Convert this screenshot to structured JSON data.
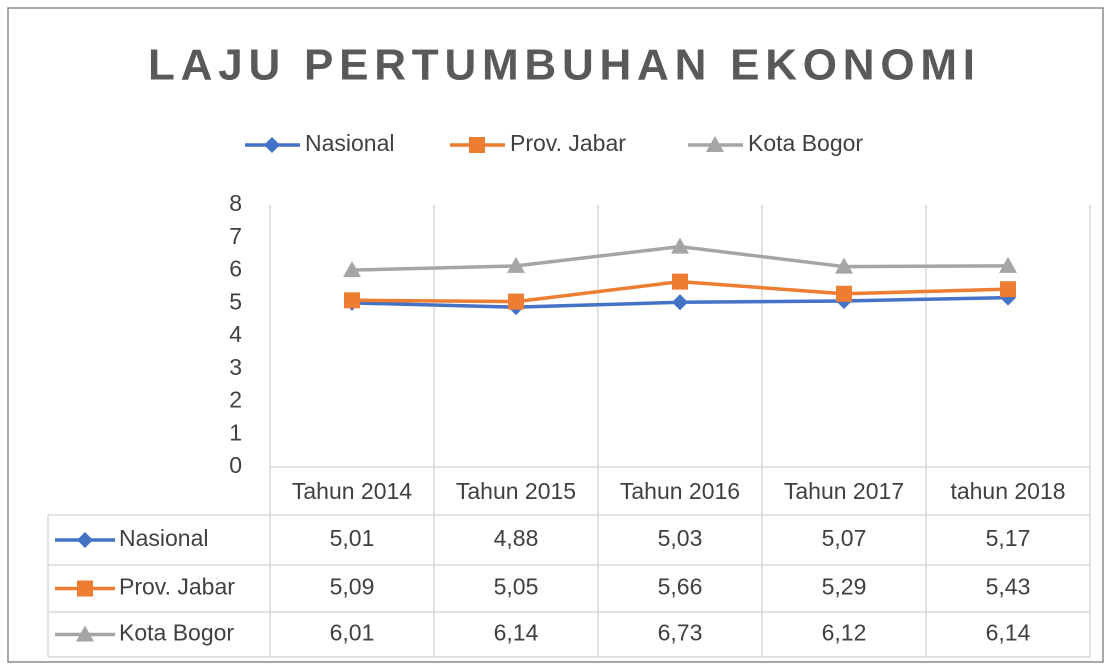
{
  "chart_data": {
    "type": "line",
    "title": "LAJU PERTUMBUHAN EKONOMI",
    "categories": [
      "Tahun 2014",
      "Tahun 2015",
      "Tahun 2016",
      "Tahun 2017",
      "tahun 2018"
    ],
    "series": [
      {
        "name": "Nasional",
        "color": "#4472c4",
        "marker": "diamond",
        "values": [
          5.01,
          4.88,
          5.03,
          5.07,
          5.17
        ],
        "value_labels": [
          "5,01",
          "4,88",
          "5,03",
          "5,07",
          "5,17"
        ]
      },
      {
        "name": "Prov. Jabar",
        "color": "#ed7d31",
        "marker": "square",
        "values": [
          5.09,
          5.05,
          5.66,
          5.29,
          5.43
        ],
        "value_labels": [
          "5,09",
          "5,05",
          "5,66",
          "5,29",
          "5,43"
        ]
      },
      {
        "name": "Kota Bogor",
        "color": "#a5a5a5",
        "marker": "triangle",
        "values": [
          6.01,
          6.14,
          6.73,
          6.12,
          6.14
        ],
        "value_labels": [
          "6,01",
          "6,14",
          "6,73",
          "6,12",
          "6,14"
        ]
      }
    ],
    "ylim": [
      0,
      8
    ],
    "yticks": [
      0,
      1,
      2,
      3,
      4,
      5,
      6,
      7,
      8
    ],
    "grid": true,
    "legend": "top",
    "data_table": true
  }
}
